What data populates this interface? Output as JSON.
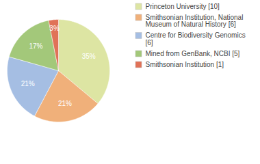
{
  "chart_data": {
    "type": "pie",
    "categories": [
      "Princeton University [10]",
      "Smithsonian Institution, National Museum of Natural History [6]",
      "Centre for Biodiversity Genomics [6]",
      "Mined from GenBank, NCBI [5]",
      "Smithsonian Institution [1]"
    ],
    "values": [
      35,
      21,
      21,
      17,
      3
    ],
    "value_labels": [
      "35%",
      "21%",
      "21%",
      "17%",
      "3%"
    ],
    "colors": [
      "#dde5a3",
      "#f0b07a",
      "#a5bee3",
      "#a3c87a",
      "#e07258"
    ],
    "data_labels": true,
    "legend": "right"
  }
}
